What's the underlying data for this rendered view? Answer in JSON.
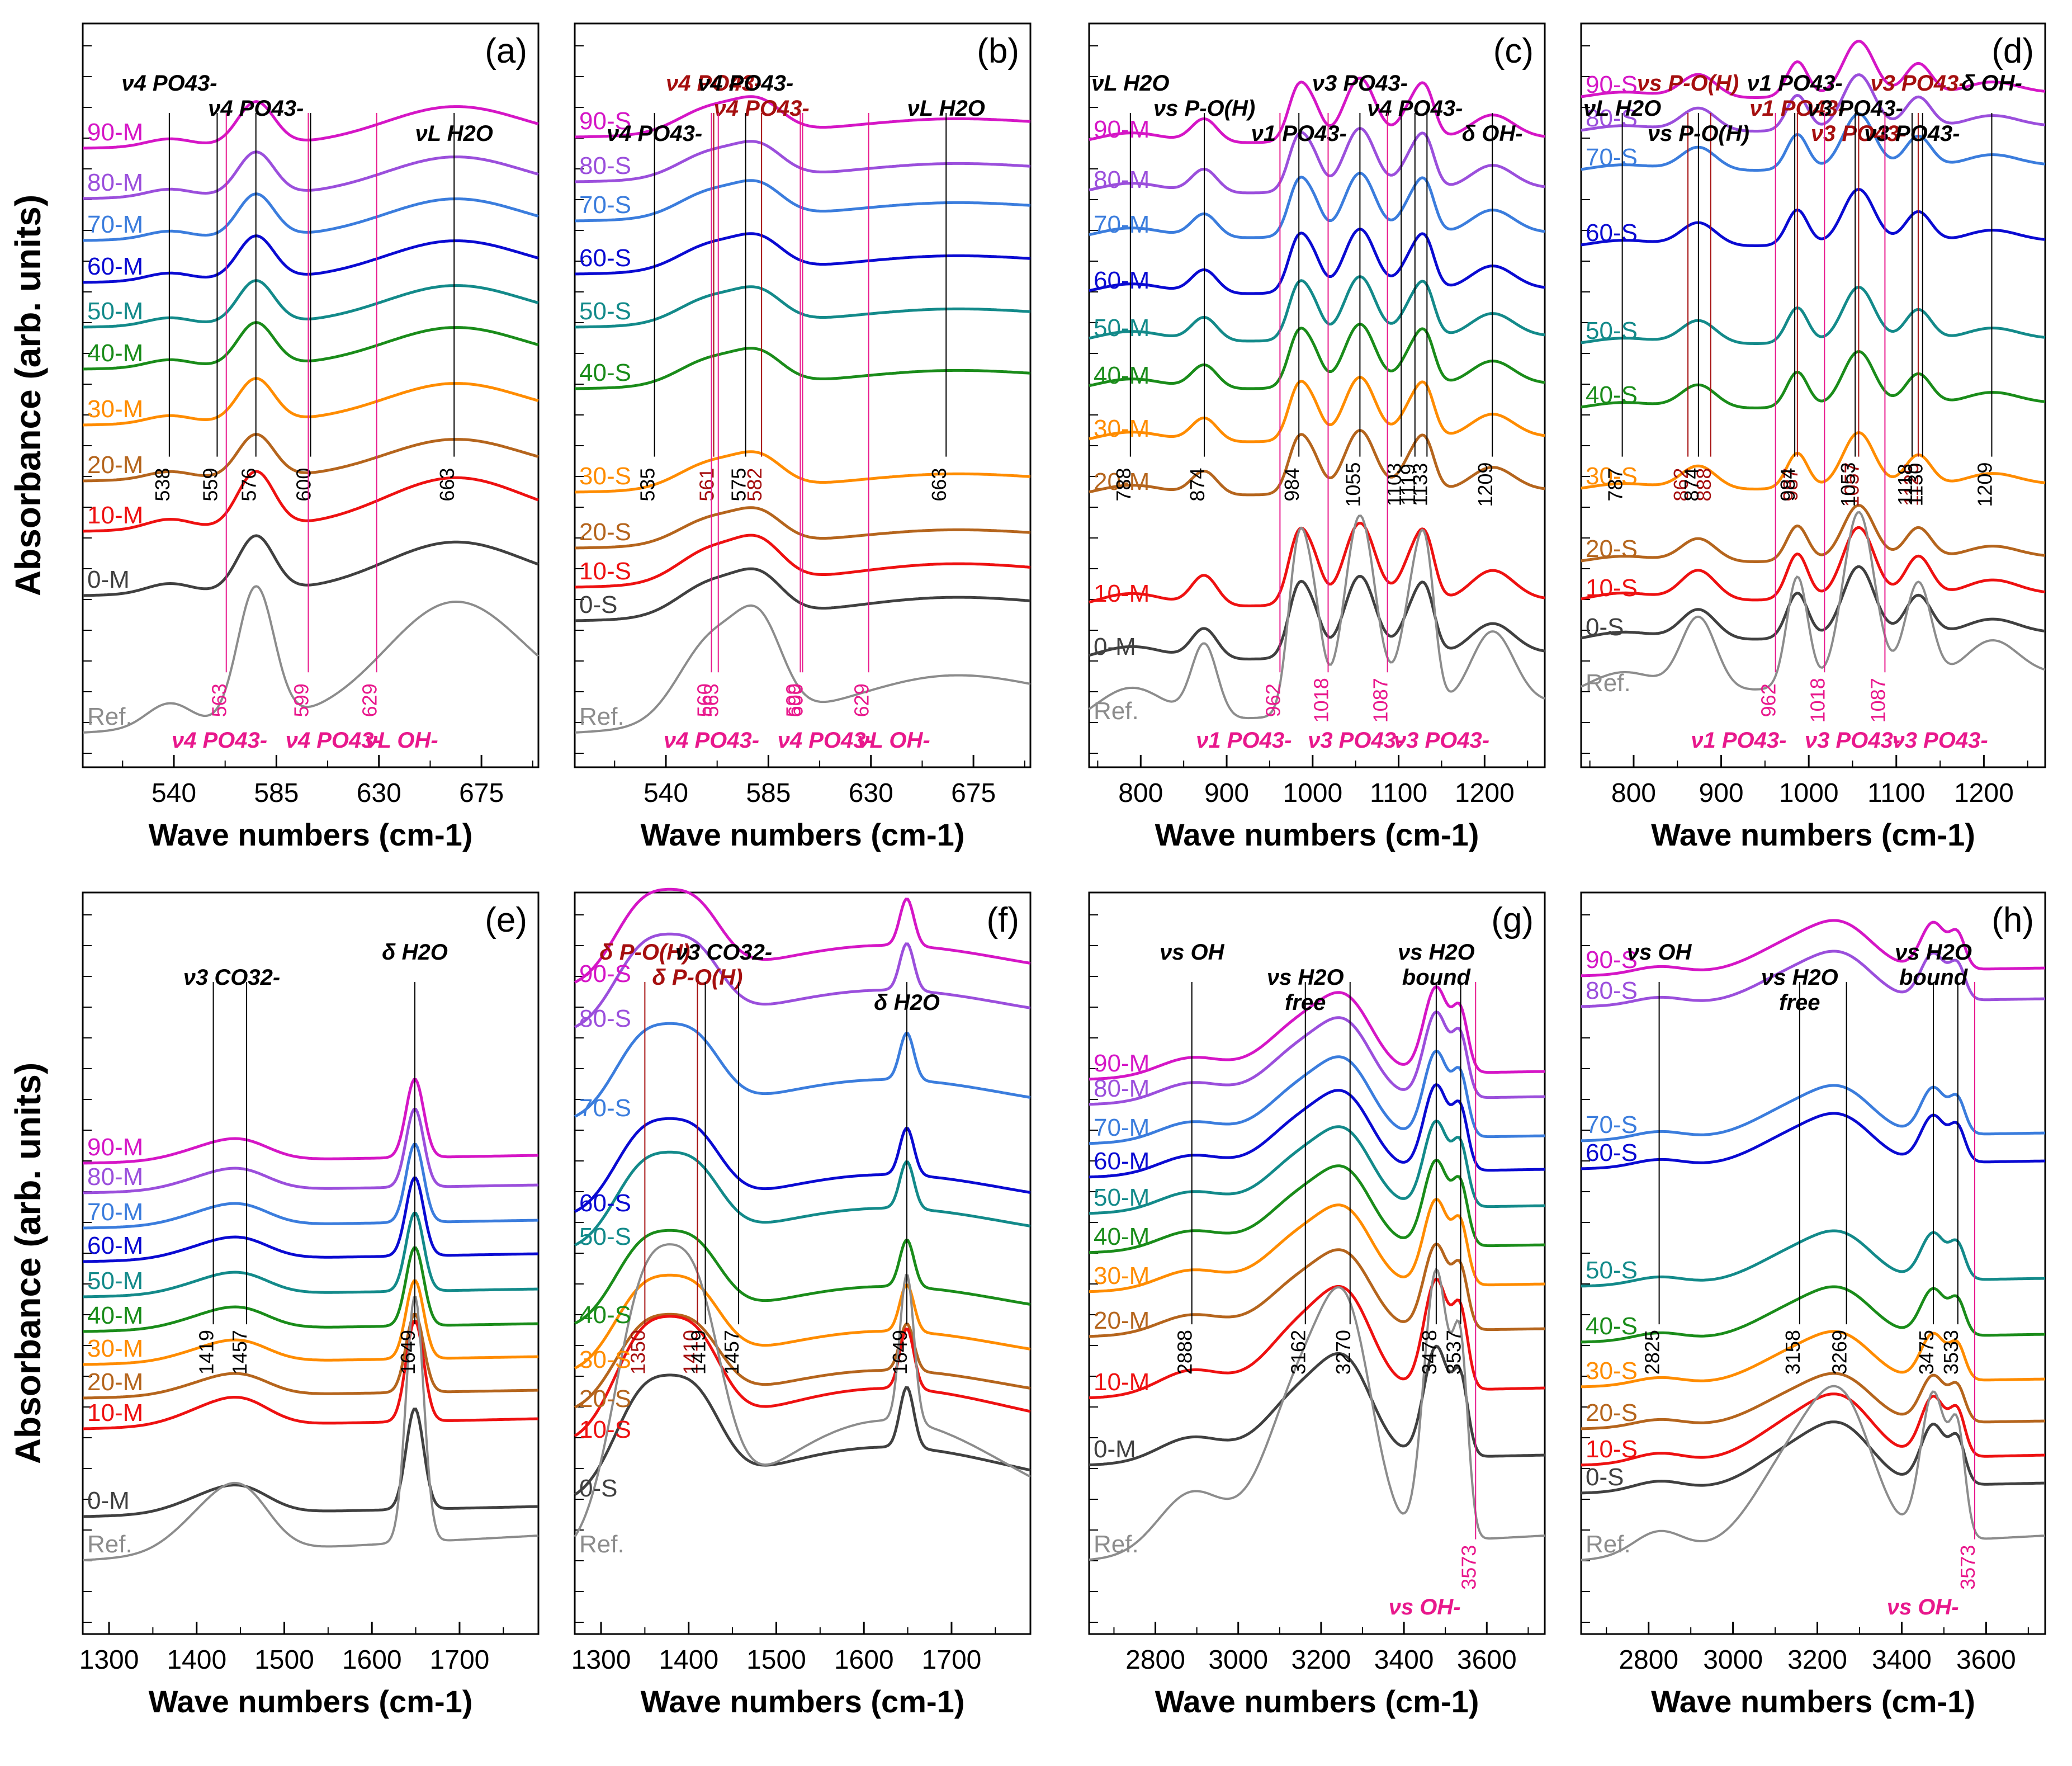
{
  "figure": {
    "y_label": "Absorbance (arb. units)",
    "x_label": "Wave numbers (cm",
    "x_label_sup": "-1",
    "x_label_end": ")"
  },
  "colors": {
    "0": "#404040",
    "10": "#ee1111",
    "20": "#b5651d",
    "30": "#ff8c00",
    "40": "#1a8c1a",
    "50": "#138a8a",
    "60": "#0a0ad2",
    "70": "#3b7ddd",
    "80": "#9b4fdc",
    "90": "#d516c6",
    "Ref": "#8c8c8c",
    "label_black": "#000000",
    "label_magenta": "#e8188c",
    "label_darkred": "#a50f0f"
  },
  "chart_data": [
    {
      "panel": "(a)",
      "type": "line",
      "xlim": [
        500,
        700
      ],
      "xticks": [
        540,
        585,
        630,
        675
      ],
      "series_suffix": "M",
      "series": [
        "90-M",
        "80-M",
        "70-M",
        "60-M",
        "50-M",
        "40-M",
        "30-M",
        "20-M",
        "10-M",
        "0-M",
        "Ref."
      ],
      "peaks": [
        {
          "x": 563,
          "w": 8,
          "h": 1
        },
        {
          "x": 599,
          "w": 6,
          "h": 0.8
        },
        {
          "x": 629,
          "w": 8,
          "h": 0.5
        },
        {
          "x": 576,
          "w": 6,
          "h": 0.5
        },
        {
          "x": 663,
          "w": 25,
          "h": 0.35
        }
      ],
      "annotations": [
        {
          "text": "ν4 PO43-",
          "x": 538,
          "color": "black"
        },
        {
          "text": "ν4 PO43-",
          "x": 576,
          "color": "black"
        },
        {
          "text": "νL H2O",
          "x": 663,
          "color": "black"
        },
        {
          "text": "538",
          "x": 538,
          "color": "black"
        },
        {
          "text": "576",
          "x": 576,
          "color": "black"
        },
        {
          "text": "663",
          "x": 663,
          "color": "black"
        },
        {
          "text": "559",
          "x": 559,
          "color": "black"
        },
        {
          "text": "600",
          "x": 600,
          "color": "black"
        },
        {
          "text": "563",
          "x": 563,
          "color": "magenta"
        },
        {
          "text": "599",
          "x": 599,
          "color": "magenta"
        },
        {
          "text": "629",
          "x": 629,
          "color": "magenta"
        },
        {
          "text": "νL OH-",
          "x": 640,
          "color": "magenta"
        },
        {
          "text": "ν4 PO43-",
          "x": 560,
          "color": "magenta"
        },
        {
          "text": "ν4 PO43-",
          "x": 610,
          "color": "magenta"
        }
      ]
    },
    {
      "panel": "(b)",
      "type": "line",
      "xlim": [
        500,
        700
      ],
      "xticks": [
        540,
        585,
        630,
        675
      ],
      "series": [
        "90-S",
        "80-S",
        "70-S",
        "60-S",
        "50-S",
        "40-S",
        "30-S",
        "20-S",
        "10-S",
        "0-S",
        "Ref."
      ],
      "annotations": [
        {
          "text": "ν4 PO43-",
          "x": 561,
          "color": "darkred"
        },
        {
          "text": "ν4 PO43-",
          "x": 582,
          "color": "darkred"
        },
        {
          "text": "561",
          "x": 561,
          "color": "darkred"
        },
        {
          "text": "582",
          "x": 582,
          "color": "darkred"
        },
        {
          "text": "ν4 PO43-",
          "x": 535,
          "color": "black"
        },
        {
          "text": "ν4 PO43-",
          "x": 575,
          "color": "black"
        },
        {
          "text": "νL H2O",
          "x": 663,
          "color": "black"
        },
        {
          "text": "535",
          "x": 535,
          "color": "black"
        },
        {
          "text": "575",
          "x": 575,
          "color": "black"
        },
        {
          "text": "663",
          "x": 663,
          "color": "black"
        },
        {
          "text": "560",
          "x": 560,
          "color": "magenta"
        },
        {
          "text": "600",
          "x": 600,
          "color": "magenta"
        },
        {
          "text": "629",
          "x": 629,
          "color": "magenta"
        },
        {
          "text": "563",
          "x": 563,
          "color": "magenta"
        },
        {
          "text": "599",
          "x": 599,
          "color": "magenta"
        },
        {
          "text": "νL OH-",
          "x": 640,
          "color": "magenta"
        },
        {
          "text": "ν4 PO43-",
          "x": 560,
          "color": "magenta"
        },
        {
          "text": "ν4 PO43-",
          "x": 610,
          "color": "magenta"
        }
      ]
    },
    {
      "panel": "(c)",
      "type": "line",
      "xlim": [
        740,
        1270
      ],
      "xticks": [
        800,
        900,
        1000,
        1100,
        1200
      ],
      "series": [
        "90-M",
        "80-M",
        "70-M",
        "60-M",
        "50-M",
        "40-M",
        "30-M",
        "20-M",
        "10-M",
        "0-M",
        "Ref."
      ],
      "annotations": [
        {
          "text": "νL H2O",
          "x": 788,
          "color": "black"
        },
        {
          "text": "νs P-O(H)",
          "x": 874,
          "color": "black"
        },
        {
          "text": "ν1 PO43-",
          "x": 984,
          "color": "black"
        },
        {
          "text": "ν3 PO43-",
          "x": 1055,
          "color": "black"
        },
        {
          "text": "ν4 PO43-",
          "x": 1119,
          "color": "black"
        },
        {
          "text": "δ OH-",
          "x": 1209,
          "color": "black"
        },
        {
          "text": "788",
          "x": 788,
          "color": "black"
        },
        {
          "text": "874",
          "x": 874,
          "color": "black"
        },
        {
          "text": "984",
          "x": 984,
          "color": "black"
        },
        {
          "text": "1055",
          "x": 1055,
          "color": "black"
        },
        {
          "text": "1119",
          "x": 1119,
          "color": "black"
        },
        {
          "text": "1133",
          "x": 1133,
          "color": "black"
        },
        {
          "text": "1103",
          "x": 1103,
          "color": "black"
        },
        {
          "text": "1209",
          "x": 1209,
          "color": "black"
        },
        {
          "text": "962",
          "x": 962,
          "color": "magenta"
        },
        {
          "text": "1018",
          "x": 1018,
          "color": "magenta"
        },
        {
          "text": "1087",
          "x": 1087,
          "color": "magenta"
        },
        {
          "text": "ν1 PO43-",
          "x": 920,
          "color": "magenta"
        },
        {
          "text": "ν3 PO43-",
          "x": 1150,
          "color": "magenta"
        },
        {
          "text": "ν3 PO43-",
          "x": 1050,
          "color": "magenta"
        }
      ]
    },
    {
      "panel": "(d)",
      "type": "line",
      "xlim": [
        740,
        1270
      ],
      "xticks": [
        800,
        900,
        1000,
        1100,
        1200
      ],
      "series": [
        "90-S",
        "80-S",
        "70-S",
        "60-S",
        "50-S",
        "40-S",
        "30-S",
        "20-S",
        "10-S",
        "0-S",
        "Ref."
      ],
      "annotations": [
        {
          "text": "νs P-O(H)",
          "x": 862,
          "color": "darkred"
        },
        {
          "text": "ν1 PO43-",
          "x": 987,
          "color": "darkred"
        },
        {
          "text": "ν3 PO43-",
          "x": 1057,
          "color": "darkred"
        },
        {
          "text": "ν3 PO43-",
          "x": 1125,
          "color": "darkred"
        },
        {
          "text": "862",
          "x": 862,
          "color": "darkred"
        },
        {
          "text": "888",
          "x": 888,
          "color": "darkred"
        },
        {
          "text": "987",
          "x": 987,
          "color": "darkred"
        },
        {
          "text": "1057",
          "x": 1057,
          "color": "darkred"
        },
        {
          "text": "1125",
          "x": 1125,
          "color": "darkred"
        },
        {
          "text": "νL H2O",
          "x": 787,
          "color": "black"
        },
        {
          "text": "νs P-O(H)",
          "x": 874,
          "color": "black"
        },
        {
          "text": "ν1 PO43-",
          "x": 984,
          "color": "black"
        },
        {
          "text": "ν3 PO43-",
          "x": 1053,
          "color": "black"
        },
        {
          "text": "ν3 PO43-",
          "x": 1118,
          "color": "black"
        },
        {
          "text": "δ OH-",
          "x": 1209,
          "color": "black"
        },
        {
          "text": "787",
          "x": 787,
          "color": "black"
        },
        {
          "text": "874",
          "x": 874,
          "color": "black"
        },
        {
          "text": "984",
          "x": 984,
          "color": "black"
        },
        {
          "text": "1053",
          "x": 1053,
          "color": "black"
        },
        {
          "text": "1118",
          "x": 1118,
          "color": "black"
        },
        {
          "text": "1130",
          "x": 1130,
          "color": "black"
        },
        {
          "text": "1209",
          "x": 1209,
          "color": "black"
        },
        {
          "text": "962",
          "x": 962,
          "color": "magenta"
        },
        {
          "text": "1018",
          "x": 1018,
          "color": "magenta"
        },
        {
          "text": "1087",
          "x": 1087,
          "color": "magenta"
        },
        {
          "text": "ν1 PO43-",
          "x": 920,
          "color": "magenta"
        },
        {
          "text": "ν3 PO43-",
          "x": 1150,
          "color": "magenta"
        },
        {
          "text": "ν3 PO43-",
          "x": 1050,
          "color": "magenta"
        }
      ]
    },
    {
      "panel": "(e)",
      "type": "line",
      "xlim": [
        1270,
        1790
      ],
      "xticks": [
        1300,
        1400,
        1500,
        1600,
        1700
      ],
      "series": [
        "90-M",
        "80-M",
        "70-M",
        "60-M",
        "50-M",
        "40-M",
        "30-M",
        "20-M",
        "10-M",
        "0-M",
        "Ref."
      ],
      "annotations": [
        {
          "text": "δ H2O",
          "x": 1649,
          "color": "black"
        },
        {
          "text": "1649",
          "x": 1649,
          "color": "black"
        },
        {
          "text": "1419",
          "x": 1419,
          "color": "black"
        },
        {
          "text": "1457",
          "x": 1457,
          "color": "black"
        },
        {
          "text": "ν3 CO32-",
          "x": 1440,
          "color": "black"
        }
      ]
    },
    {
      "panel": "(f)",
      "type": "line",
      "xlim": [
        1270,
        1790
      ],
      "xticks": [
        1300,
        1400,
        1500,
        1600,
        1700
      ],
      "series": [
        "90-S",
        "80-S",
        "70-S",
        "60-S",
        "50-S",
        "40-S",
        "30-S",
        "20-S",
        "10-S",
        "0-S",
        "Ref."
      ],
      "annotations": [
        {
          "text": "δ P-O(H)",
          "x": 1350,
          "color": "darkred"
        },
        {
          "text": "δ P-O(H)",
          "x": 1410,
          "color": "darkred"
        },
        {
          "text": "1350",
          "x": 1350,
          "color": "darkred"
        },
        {
          "text": "1410",
          "x": 1410,
          "color": "darkred"
        },
        {
          "text": "δ H2O",
          "x": 1649,
          "color": "black"
        },
        {
          "text": "1649",
          "x": 1649,
          "color": "black"
        },
        {
          "text": "1419",
          "x": 1419,
          "color": "black"
        },
        {
          "text": "1457",
          "x": 1457,
          "color": "black"
        },
        {
          "text": "ν3 CO32-",
          "x": 1440,
          "color": "black"
        }
      ]
    },
    {
      "panel": "(g)",
      "type": "line",
      "xlim": [
        2640,
        3740
      ],
      "xticks": [
        2800,
        3000,
        3200,
        3400,
        3600
      ],
      "series": [
        "90-M",
        "80-M",
        "70-M",
        "60-M",
        "50-M",
        "40-M",
        "30-M",
        "20-M",
        "10-M",
        "0-M",
        "Ref."
      ],
      "annotations": [
        {
          "text": "νs OH",
          "x": 2888,
          "color": "black"
        },
        {
          "text": "νs H2O",
          "x": 3162,
          "color": "black"
        },
        {
          "text": "free",
          "x": 3162,
          "color": "black"
        },
        {
          "text": "νs H2O",
          "x": 3478,
          "color": "black"
        },
        {
          "text": "bound",
          "x": 3478,
          "color": "black"
        },
        {
          "text": "2888",
          "x": 2888,
          "color": "black"
        },
        {
          "text": "3162",
          "x": 3162,
          "color": "black"
        },
        {
          "text": "3270",
          "x": 3270,
          "color": "black"
        },
        {
          "text": "3478",
          "x": 3478,
          "color": "black"
        },
        {
          "text": "3537",
          "x": 3537,
          "color": "black"
        },
        {
          "text": "νs OH-",
          "x": 3450,
          "color": "magenta"
        },
        {
          "text": "3573",
          "x": 3573,
          "color": "magenta"
        }
      ]
    },
    {
      "panel": "(h)",
      "type": "line",
      "xlim": [
        2640,
        3740
      ],
      "xticks": [
        2800,
        3000,
        3200,
        3400,
        3600
      ],
      "series": [
        "90-S",
        "80-S",
        "70-S",
        "60-S",
        "50-S",
        "40-S",
        "30-S",
        "20-S",
        "10-S",
        "0-S",
        "Ref."
      ],
      "annotations": [
        {
          "text": "νs OH",
          "x": 2825,
          "color": "black"
        },
        {
          "text": "νs H2O",
          "x": 3158,
          "color": "black"
        },
        {
          "text": "free",
          "x": 3158,
          "color": "black"
        },
        {
          "text": "νs H2O",
          "x": 3475,
          "color": "black"
        },
        {
          "text": "bound",
          "x": 3475,
          "color": "black"
        },
        {
          "text": "2825",
          "x": 2825,
          "color": "black"
        },
        {
          "text": "3158",
          "x": 3158,
          "color": "black"
        },
        {
          "text": "3269",
          "x": 3269,
          "color": "black"
        },
        {
          "text": "3475",
          "x": 3475,
          "color": "black"
        },
        {
          "text": "3533",
          "x": 3533,
          "color": "black"
        },
        {
          "text": "νs OH-",
          "x": 3450,
          "color": "magenta"
        },
        {
          "text": "3573",
          "x": 3573,
          "color": "magenta"
        }
      ]
    }
  ]
}
